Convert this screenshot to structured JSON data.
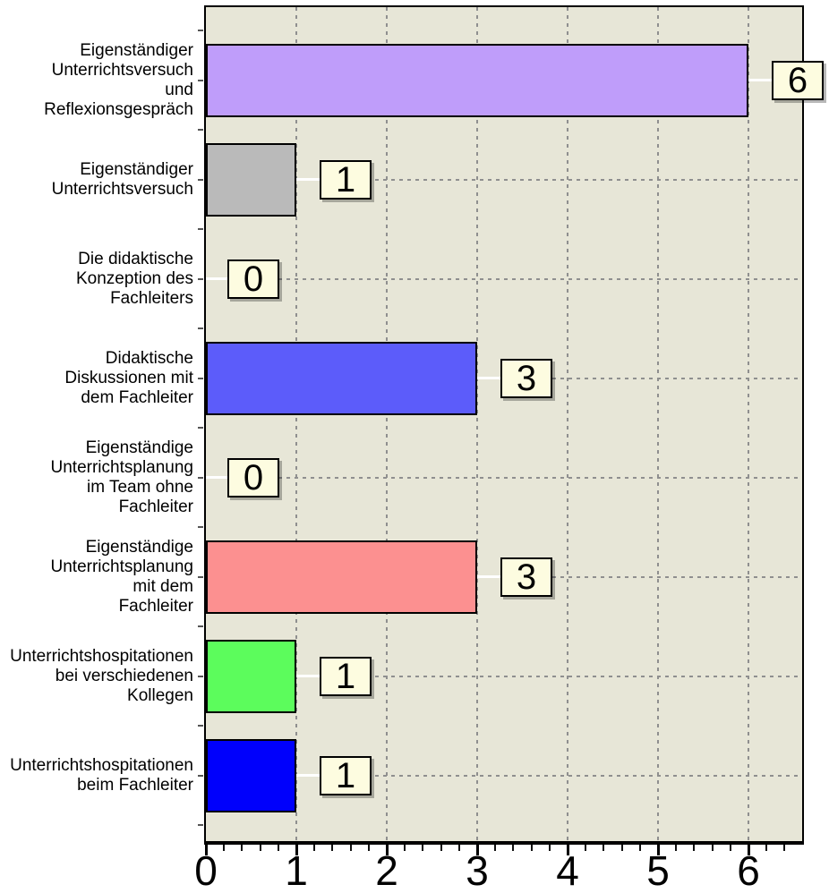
{
  "chart_data": {
    "type": "bar",
    "orientation": "horizontal",
    "title": "",
    "xlabel": "",
    "ylabel": "",
    "xlim": [
      0,
      6.6
    ],
    "grid": "dashed-vertical-and-horizontal",
    "legend": "none",
    "categories": [
      "Eigenständiger Unterrichtsversuch und Reflexionsgespräch",
      "Eigenständiger Unterrichtsversuch",
      "Die didaktische Konzeption des Fachleiters",
      "Didaktische Diskussionen mit dem Fachleiter",
      "Eigenständige Unterrichtsplanung im Team ohne Fachleiter",
      "Eigenständige Unterrichtsplanung mit dem Fachleiter",
      "Unterrichtshospitationen bei verschiedenen Kollegen",
      "Unterrichtshospitationen beim Fachleiter"
    ],
    "category_lines": [
      [
        "Eigenständiger",
        "Unterrichtsversuch",
        "und",
        "Reflexionsgespräch"
      ],
      [
        "Eigenständiger",
        "Unterrichtsversuch"
      ],
      [
        "Die didaktische",
        "Konzeption des",
        "Fachleiters"
      ],
      [
        "Didaktische",
        "Diskussionen mit",
        "dem Fachleiter"
      ],
      [
        "Eigenständige",
        "Unterrichtsplanung",
        "im Team ohne",
        "Fachleiter"
      ],
      [
        "Eigenständige",
        "Unterrichtsplanung",
        "mit dem",
        "Fachleiter"
      ],
      [
        "Unterrichtshospitationen",
        "bei verschiedenen",
        "Kollegen"
      ],
      [
        "Unterrichtshospitationen",
        "beim Fachleiter"
      ]
    ],
    "values": [
      6,
      1,
      0,
      3,
      0,
      3,
      1,
      1
    ],
    "value_labels": [
      "6",
      "1",
      "0",
      "3",
      "0",
      "3",
      "1",
      "1"
    ],
    "bar_colors": [
      "#bf9dfa",
      "#bababa",
      null,
      "#5c5cfa",
      null,
      "#fc9090",
      "#5cfc5c",
      "#0000fc"
    ],
    "xtick_labels": [
      "0",
      "1",
      "2",
      "3",
      "4",
      "5",
      "6"
    ],
    "minor_tick_step": 0.2,
    "style_colors": {
      "plot_background": "#e7e6d7",
      "gridline": "#8f8f8f",
      "bar_border": "#000000",
      "value_box_background": "#fdfce0",
      "value_box_border": "#000000",
      "connector_line": "#ffffff",
      "text": "#000000",
      "outer_background": "#ffffff"
    }
  }
}
